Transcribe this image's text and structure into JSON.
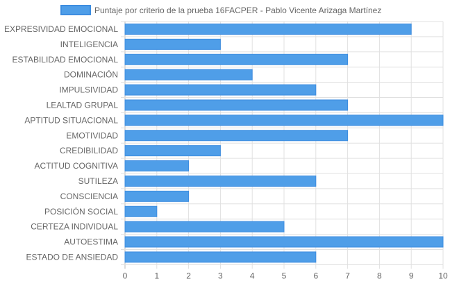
{
  "chart_data": {
    "type": "bar",
    "orientation": "horizontal",
    "legend": {
      "position": "top",
      "label": "Puntaje por criterio de la prueba 16FACPER - Pablo Vicente Arizaga Martínez"
    },
    "categories": [
      "EXPRESIVIDAD EMOCIONAL",
      "INTELIGENCIA",
      "ESTABILIDAD EMOCIONAL",
      "DOMINACIÓN",
      "IMPULSIVIDAD",
      "LEALTAD GRUPAL",
      "APTITUD SITUACIONAL",
      "EMOTIVIDAD",
      "CREDIBILIDAD",
      "ACTITUD COGNITIVA",
      "SUTILEZA",
      "CONSCIENCIA",
      "POSICIÓN SOCIAL",
      "CERTEZA INDIVIDUAL",
      "AUTOESTIMA",
      "ESTADO DE ANSIEDAD"
    ],
    "series": [
      {
        "name": "Puntaje por criterio de la prueba 16FACPER - Pablo Vicente Arizaga Martínez",
        "values": [
          9,
          3,
          7,
          4,
          6,
          7,
          10,
          7,
          3,
          2,
          6,
          2,
          1,
          5,
          10,
          6
        ]
      }
    ],
    "xlim": [
      0,
      10
    ],
    "x_ticks": [
      "0",
      "1",
      "2",
      "3",
      "4",
      "5",
      "6",
      "7",
      "8",
      "9",
      "10"
    ],
    "grid": true,
    "colors": {
      "bar_fill": "#4f9ee8",
      "bar_stroke": "#3d8de0",
      "grid": "#e0e0e0",
      "axis": "#b8b8b8",
      "text": "#666666"
    }
  }
}
